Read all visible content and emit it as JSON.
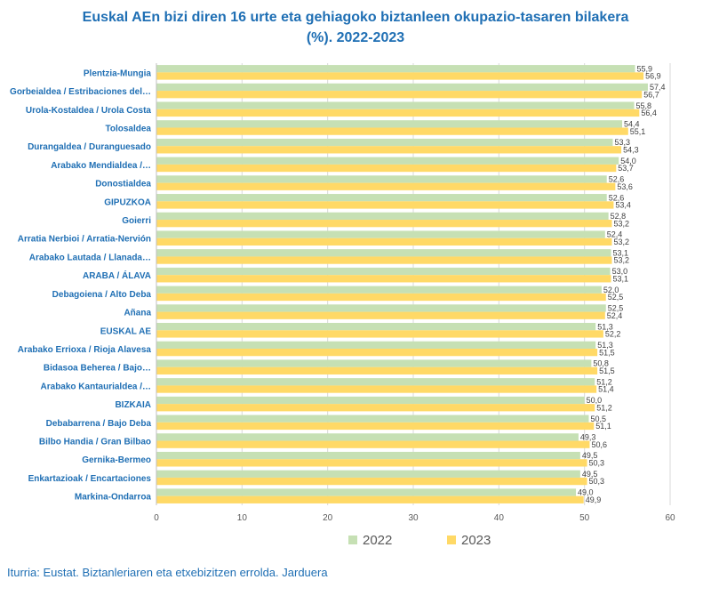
{
  "title_line1": "Euskal AEn bizi diren 16 urte eta gehiagoko biztanleen okupazio-tasaren bilakera",
  "title_line2": "(%). 2022-2023",
  "source": "Iturria: Eustat. Biztanleriaren eta etxebizitzen errolda. Jarduera",
  "colors": {
    "s2022": "#c6e0b4",
    "s2023": "#ffd966",
    "label": "#1f6fb4",
    "grid": "#d9d9d9"
  },
  "chart_data": {
    "type": "bar",
    "orientation": "horizontal",
    "categories": [
      "Plentzia-Mungia",
      "Gorbeialdea / Estribaciones del…",
      "Urola-Kostaldea  /  Urola Costa",
      "Tolosaldea",
      "Durangaldea  /  Duranguesado",
      "Arabako Mendialdea  /…",
      "Donostialdea",
      "GIPUZKOA",
      "Goierri",
      "Arratia Nerbioi  /  Arratia-Nervión",
      "Arabako Lautada  /  Llanada…",
      "ARABA / ÁLAVA",
      "Debagoiena  /  Alto Deba",
      "Añana",
      "EUSKAL AE",
      "Arabako Errioxa / Rioja Alavesa",
      "Bidasoa Beherea  /  Bajo…",
      "Arabako Kantauri­aldea /…",
      "BIZKAIA",
      "Debabarrena / Bajo Deba",
      "Bilbo Handia  /  Gran Bilbao",
      "Gernika-Bermeo",
      "Enkartazioak  /  Encartaciones",
      "Markina-Ondarroa"
    ],
    "series": [
      {
        "name": "2022",
        "values": [
          55.9,
          57.4,
          55.8,
          54.4,
          53.3,
          54.0,
          52.6,
          52.6,
          52.8,
          52.4,
          53.1,
          53.0,
          52.0,
          52.5,
          51.3,
          51.3,
          50.8,
          51.2,
          50.0,
          50.5,
          49.3,
          49.5,
          49.5,
          49.0
        ],
        "labels": [
          "55,9",
          "57,4",
          "55,8",
          "54,4",
          "53,3",
          "54,0",
          "52,6",
          "52,6",
          "52,8",
          "52,4",
          "53,1",
          "53,0",
          "52,0",
          "52,5",
          "51,3",
          "51,3",
          "50,8",
          "51,2",
          "50,0",
          "50,5",
          "49,3",
          "49,5",
          "49,5",
          "49,0"
        ]
      },
      {
        "name": "2023",
        "values": [
          56.9,
          56.7,
          56.4,
          55.1,
          54.3,
          53.7,
          53.6,
          53.4,
          53.2,
          53.2,
          53.2,
          53.1,
          52.5,
          52.4,
          52.2,
          51.5,
          51.5,
          51.4,
          51.2,
          51.1,
          50.6,
          50.3,
          50.3,
          49.9
        ],
        "labels": [
          "56,9",
          "56,7",
          "56,4",
          "55,1",
          "54,3",
          "53,7",
          "53,6",
          "53,4",
          "53,2",
          "53,2",
          "53,2",
          "53,1",
          "52,5",
          "52,4",
          "52,2",
          "51,5",
          "51,5",
          "51,4",
          "51,2",
          "51,1",
          "50,6",
          "50,3",
          "50,3",
          "49,9"
        ]
      }
    ],
    "xlim": [
      0,
      60
    ],
    "xticks": [
      0,
      10,
      20,
      30,
      40,
      50,
      60
    ],
    "xtick_labels": [
      "0",
      "10",
      "20",
      "30",
      "40",
      "50",
      "60"
    ],
    "grid": true,
    "legend": [
      "2022",
      "2023"
    ],
    "legend_position": "bottom"
  }
}
